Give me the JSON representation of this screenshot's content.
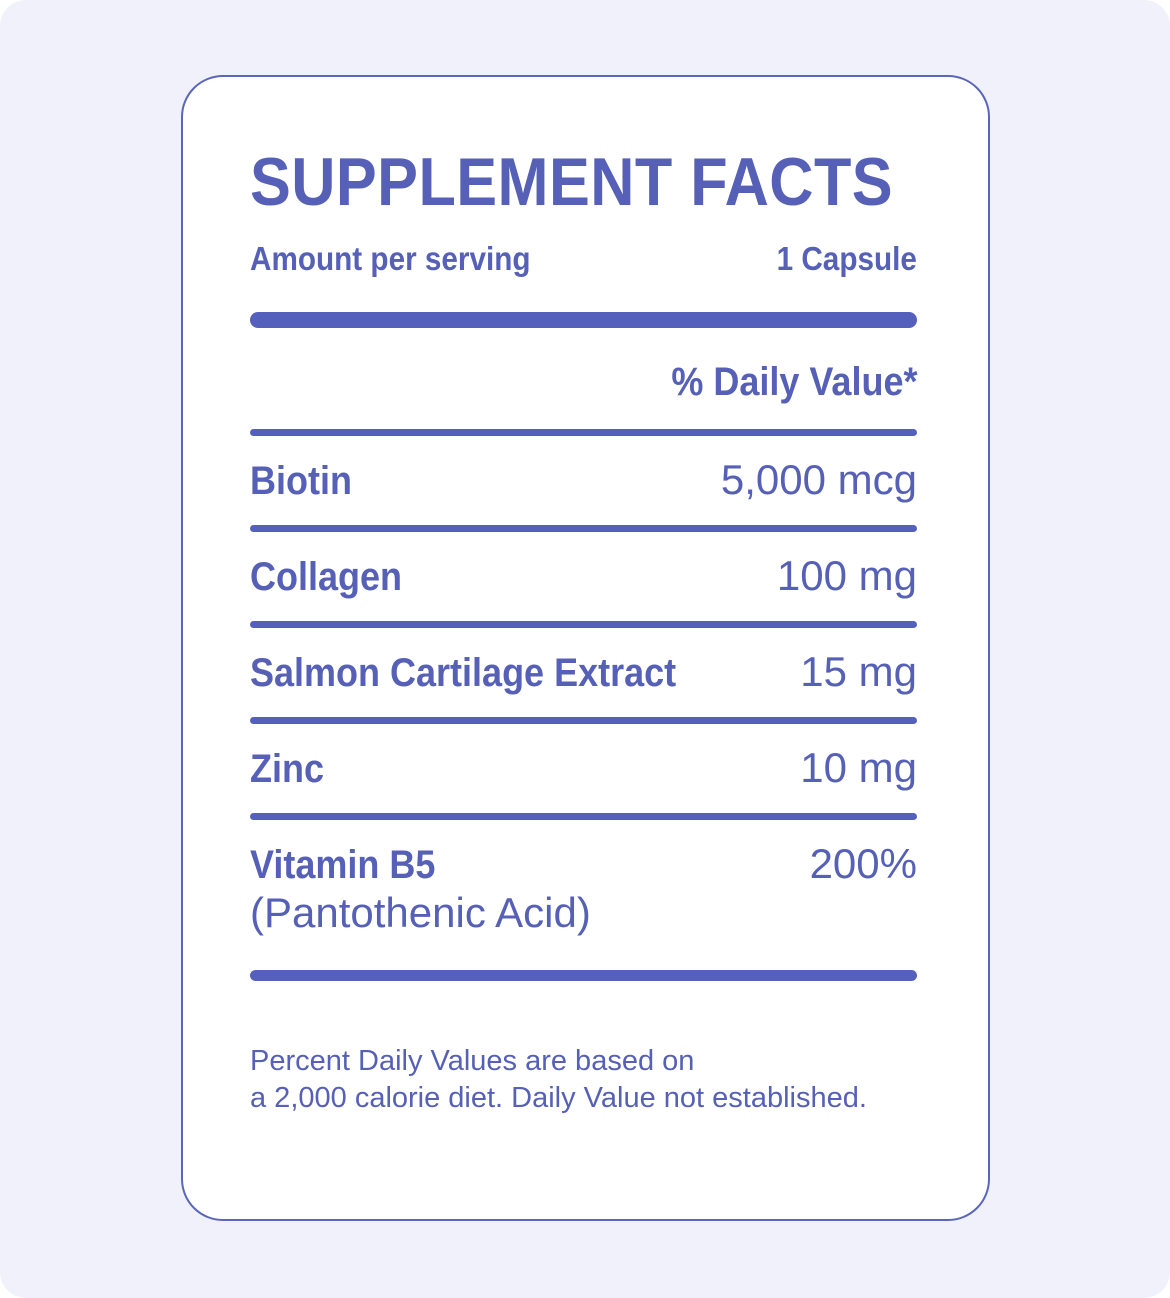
{
  "label": {
    "title": "SUPPLEMENT FACTS",
    "serving": {
      "amount_label": "Amount per serving",
      "serving_size": "1 Capsule"
    },
    "daily_value_header": "% Daily Value*",
    "rows": [
      {
        "name": "Biotin",
        "value": "5,000 mcg"
      },
      {
        "name": "Collagen",
        "value": "100 mg"
      },
      {
        "name": "Salmon Cartilage Extract",
        "value": "15 mg"
      },
      {
        "name": "Zinc",
        "value": "10 mg"
      },
      {
        "name": "Vitamin B5",
        "subname": "(Pantothenic Acid)",
        "value": "200%"
      }
    ],
    "footnote": {
      "line1": "Percent Daily Values are based on",
      "line2": "a 2,000 calorie diet. Daily Value not established."
    },
    "colors": {
      "accent_text": "#5560b6",
      "accent_bar": "#5560bc",
      "card_border": "#5b65ba",
      "card_background": "#ffffff",
      "page_background": "#f1f1fb"
    }
  }
}
